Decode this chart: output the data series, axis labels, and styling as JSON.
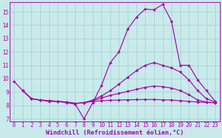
{
  "xlabel": "Windchill (Refroidissement éolien,°C)",
  "bg_color": "#c8eaea",
  "line_color": "#aa00aa",
  "xlim_min": -0.5,
  "xlim_max": 23.5,
  "ylim_min": 6.8,
  "ylim_max": 15.7,
  "xticks": [
    0,
    1,
    2,
    3,
    4,
    5,
    6,
    7,
    8,
    9,
    10,
    11,
    12,
    13,
    14,
    15,
    16,
    17,
    18,
    19,
    20,
    21,
    22,
    23
  ],
  "yticks": [
    7,
    8,
    9,
    10,
    11,
    12,
    13,
    14,
    15
  ],
  "line1_x": [
    0,
    1,
    2,
    3,
    4,
    5,
    6,
    7,
    8,
    9,
    10,
    11,
    12,
    13,
    14,
    15,
    16,
    17,
    18,
    19,
    20,
    21,
    22,
    23
  ],
  "line1_y": [
    9.8,
    9.1,
    8.5,
    8.4,
    8.3,
    8.3,
    8.2,
    8.1,
    7.0,
    8.2,
    9.5,
    11.2,
    12.0,
    13.7,
    14.6,
    15.2,
    15.15,
    15.55,
    14.3,
    11.0,
    11.0,
    9.9,
    9.1,
    8.3
  ],
  "line2_x": [
    1,
    2,
    3,
    4,
    5,
    6,
    7,
    8,
    9,
    10,
    11,
    12,
    13,
    14,
    15,
    16,
    17,
    18,
    19,
    20,
    21,
    22,
    23
  ],
  "line2_y": [
    9.1,
    8.5,
    8.4,
    8.35,
    8.3,
    8.25,
    8.15,
    8.2,
    8.4,
    8.7,
    9.1,
    9.6,
    10.1,
    10.6,
    11.0,
    11.2,
    11.0,
    10.8,
    10.5,
    9.9,
    9.1,
    8.5,
    8.25
  ],
  "line3_x": [
    1,
    2,
    3,
    4,
    5,
    6,
    7,
    8,
    9,
    10,
    11,
    12,
    13,
    14,
    15,
    16,
    17,
    18,
    19,
    20,
    21,
    22,
    23
  ],
  "line3_y": [
    9.1,
    8.5,
    8.4,
    8.35,
    8.3,
    8.25,
    8.15,
    8.2,
    8.35,
    8.55,
    8.75,
    8.9,
    9.05,
    9.2,
    9.35,
    9.45,
    9.4,
    9.3,
    9.1,
    8.8,
    8.4,
    8.25,
    8.2
  ],
  "line4_x": [
    1,
    2,
    3,
    4,
    5,
    6,
    7,
    8,
    9,
    10,
    11,
    12,
    13,
    14,
    15,
    16,
    17,
    18,
    19,
    20,
    21,
    22,
    23
  ],
  "line4_y": [
    9.1,
    8.5,
    8.4,
    8.35,
    8.3,
    8.25,
    8.15,
    8.2,
    8.3,
    8.35,
    8.38,
    8.4,
    8.42,
    8.43,
    8.44,
    8.44,
    8.42,
    8.4,
    8.35,
    8.3,
    8.25,
    8.22,
    8.2
  ],
  "grid_color": "#a0cccc",
  "tick_fontsize": 5.5,
  "xlabel_fontsize": 6.5
}
